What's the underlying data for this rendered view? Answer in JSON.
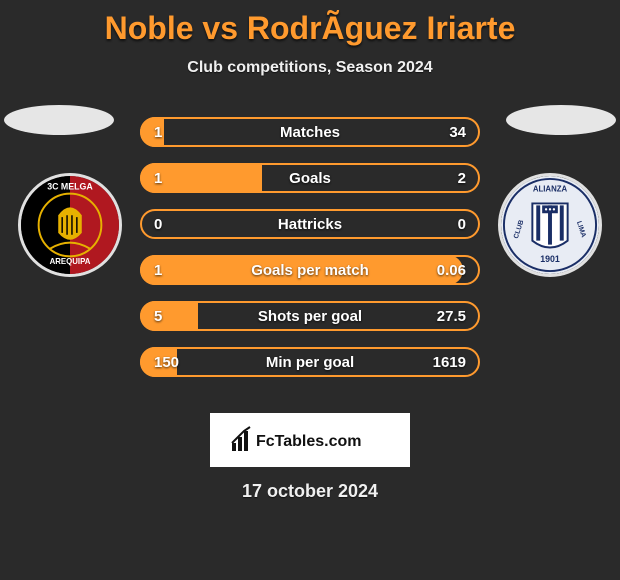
{
  "title": "Noble vs RodrÃ­guez Iriarte",
  "subtitle": "Club competitions, Season 2024",
  "date": "17 october 2024",
  "branding": "FcTables.com",
  "colors": {
    "accent": "#ff9a2e",
    "background": "#2a2a2a",
    "text_light": "#f0f0f0",
    "ellipse": "#e6e6e6",
    "footer_bg": "#ffffff"
  },
  "players": {
    "left": {
      "club": "BC Melgar",
      "club_detail": "Arequipa"
    },
    "right": {
      "club": "Alianza Lima",
      "club_detail": "1901"
    }
  },
  "stats": {
    "type": "comparison_bars",
    "bar_colors": {
      "fill": "#ff9a2e",
      "border": "#ff9a2e"
    },
    "label_fontsize": 15,
    "rows": [
      {
        "label": "Matches",
        "left": "1",
        "right": "34",
        "fill_pct": 7
      },
      {
        "label": "Goals",
        "left": "1",
        "right": "2",
        "fill_pct": 36
      },
      {
        "label": "Hattricks",
        "left": "0",
        "right": "0",
        "fill_pct": 0
      },
      {
        "label": "Goals per match",
        "left": "1",
        "right": "0.06",
        "fill_pct": 95
      },
      {
        "label": "Shots per goal",
        "left": "5",
        "right": "27.5",
        "fill_pct": 17
      },
      {
        "label": "Min per goal",
        "left": "150",
        "right": "1619",
        "fill_pct": 11
      }
    ]
  }
}
